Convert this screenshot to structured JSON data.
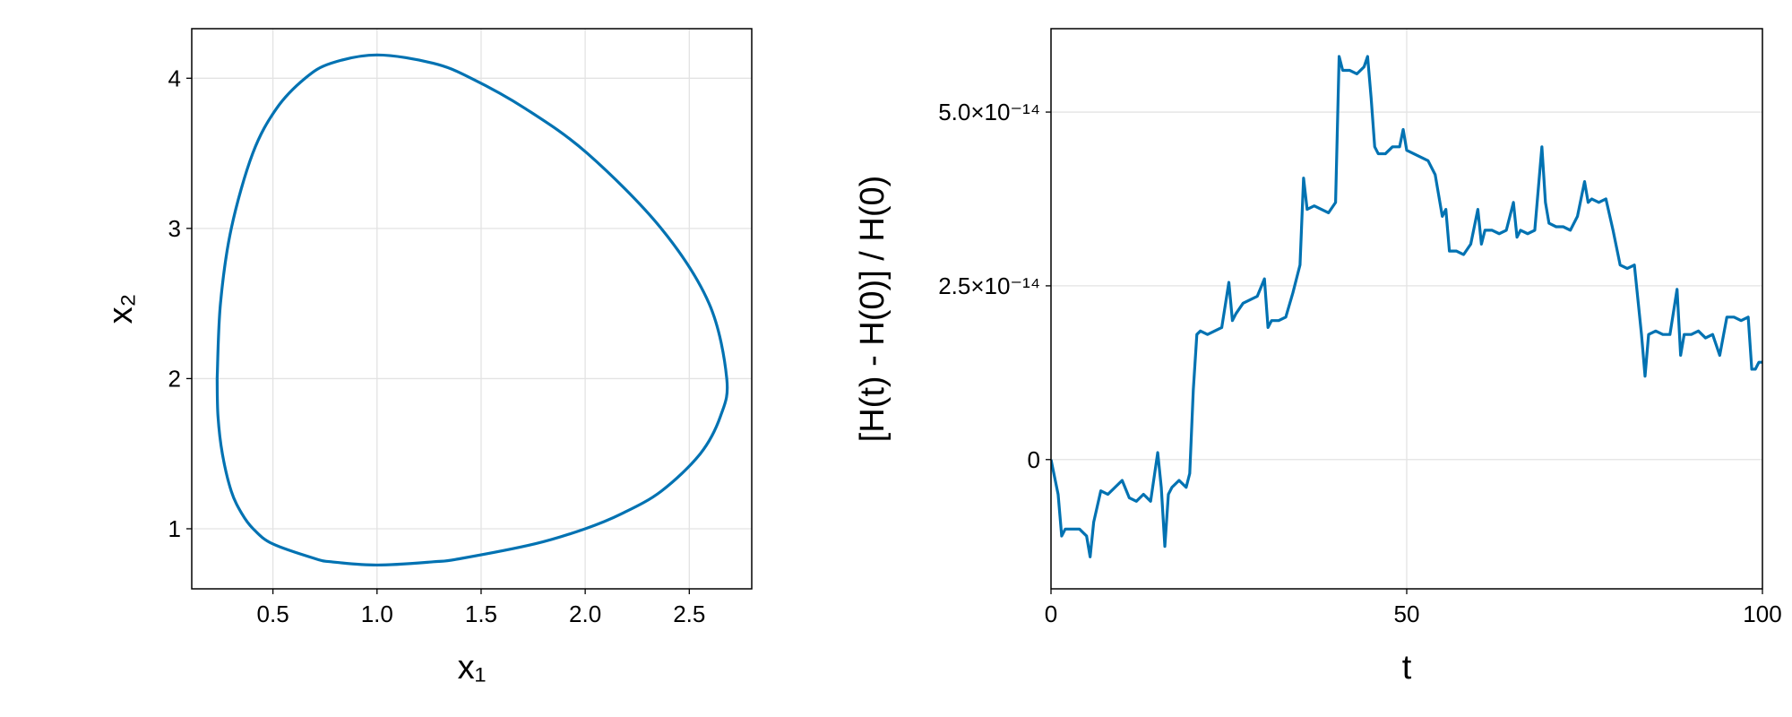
{
  "chart_data": [
    {
      "type": "parametric",
      "xlabel": "x₁",
      "ylabel": "x₂",
      "color": "#0072b2",
      "grid": true,
      "x": [
        0.232,
        0.248,
        0.3,
        0.403,
        0.518,
        0.655,
        0.78,
        1.0,
        1.27,
        1.452,
        1.71,
        2.01,
        2.365,
        2.595,
        2.68,
        2.65,
        2.553,
        2.365,
        2.175,
        2.0,
        1.76,
        1.395,
        1.27,
        1.0,
        0.78,
        0.705,
        0.498,
        0.405,
        0.351,
        0.3,
        0.257,
        0.236,
        0.232
      ],
      "values": [
        2.0,
        2.5,
        3.0,
        3.5,
        3.8,
        4.0,
        4.1,
        4.155,
        4.1,
        4.0,
        3.8,
        3.5,
        3.0,
        2.5,
        2.0,
        1.75,
        1.5,
        1.25,
        1.1,
        1.0,
        0.9,
        0.8,
        0.78,
        0.7585,
        0.78,
        0.8,
        0.9,
        1.0,
        1.1,
        1.25,
        1.5,
        1.75,
        2.0
      ],
      "xlim": [
        0.11,
        2.8
      ],
      "ylim": [
        0.6,
        4.33
      ],
      "xticks": [
        0.5,
        {
          "value": 1,
          "label": "1.0"
        },
        1.5,
        {
          "value": 2,
          "label": "2.0"
        },
        2.5
      ],
      "yticks": [
        1,
        2,
        3,
        4
      ]
    },
    {
      "type": "line",
      "xlabel": "t",
      "ylabel": "[H(t) - H(0)] / H(0)",
      "color": "#0072b2",
      "grid": true,
      "x": [
        0,
        1,
        1.5,
        2,
        4,
        5,
        5.5,
        6,
        7,
        8,
        9,
        10,
        11,
        12,
        13,
        14,
        15,
        15.5,
        16,
        16.5,
        17,
        18,
        19,
        19.5,
        20,
        20.5,
        21,
        22,
        24,
        25,
        25.5,
        26,
        27,
        28,
        29,
        30,
        30.5,
        31,
        32,
        33,
        34,
        35,
        35.5,
        36,
        37,
        38,
        39,
        40,
        40.5,
        41,
        42,
        43,
        44,
        44.5,
        45,
        45.5,
        46,
        47,
        48,
        49,
        49.5,
        50,
        51,
        52,
        53,
        54,
        55,
        55.5,
        56,
        57,
        58,
        59,
        60,
        60.5,
        61,
        62,
        63,
        64,
        65,
        65.5,
        66,
        67,
        68,
        69,
        69.5,
        70,
        71,
        72,
        73,
        74,
        75,
        75.5,
        76,
        77,
        78,
        79,
        80,
        81,
        82,
        82.5,
        83,
        83.5,
        84,
        85,
        86,
        87,
        88,
        88.5,
        89,
        90,
        91,
        92,
        93,
        94,
        95,
        96,
        97,
        98,
        98.5,
        99,
        99.5,
        100
      ],
      "values": [
        0,
        -5e-15,
        -1.1e-14,
        -1e-14,
        -1e-14,
        -1.1e-14,
        -1.4e-14,
        -9e-15,
        -4.5e-15,
        -5e-15,
        -4e-15,
        -3e-15,
        -5.5e-15,
        -6e-15,
        -5e-15,
        -6e-15,
        1e-15,
        -4e-15,
        -1.25e-14,
        -5e-15,
        -4e-15,
        -3e-15,
        -4e-15,
        -2e-15,
        1e-14,
        1.8e-14,
        1.85e-14,
        1.8e-14,
        1.9e-14,
        2.55e-14,
        2e-14,
        2.1e-14,
        2.25e-14,
        2.3e-14,
        2.35e-14,
        2.6e-14,
        1.9e-14,
        2e-14,
        2e-14,
        2.05e-14,
        2.4e-14,
        2.8e-14,
        4.05e-14,
        3.6e-14,
        3.65e-14,
        3.6e-14,
        3.55e-14,
        3.7e-14,
        5.8e-14,
        5.6e-14,
        5.6e-14,
        5.55e-14,
        5.65e-14,
        5.8e-14,
        5.2e-14,
        4.5e-14,
        4.4e-14,
        4.4e-14,
        4.5e-14,
        4.5e-14,
        4.75e-14,
        4.45e-14,
        4.4e-14,
        4.35e-14,
        4.3e-14,
        4.1e-14,
        3.5e-14,
        3.6e-14,
        3e-14,
        3e-14,
        2.95e-14,
        3.1e-14,
        3.6e-14,
        3.1e-14,
        3.3e-14,
        3.3e-14,
        3.25e-14,
        3.3e-14,
        3.7e-14,
        3.2e-14,
        3.3e-14,
        3.25e-14,
        3.3e-14,
        4.5e-14,
        3.7e-14,
        3.4e-14,
        3.35e-14,
        3.35e-14,
        3.3e-14,
        3.5e-14,
        4e-14,
        3.7e-14,
        3.75e-14,
        3.7e-14,
        3.75e-14,
        3.3e-14,
        2.8e-14,
        2.75e-14,
        2.8e-14,
        2.3e-14,
        1.8e-14,
        1.2e-14,
        1.8e-14,
        1.85e-14,
        1.8e-14,
        1.8e-14,
        2.45e-14,
        1.5e-14,
        1.8e-14,
        1.8e-14,
        1.85e-14,
        1.75e-14,
        1.8e-14,
        1.5e-14,
        2.05e-14,
        2.05e-14,
        2e-14,
        2.05e-14,
        1.3e-14,
        1.3e-14,
        1.4e-14,
        1.4e-14
      ],
      "xlim": [
        0,
        100
      ],
      "ylim": [
        -1.86e-14,
        6.2e-14
      ],
      "xticks": [
        0,
        50,
        100
      ],
      "yticks": [
        0,
        {
          "value": 2.5e-14,
          "label": "2.5×10⁻¹⁴"
        },
        {
          "value": 5e-14,
          "label": "5.0×10⁻¹⁴"
        }
      ]
    }
  ]
}
